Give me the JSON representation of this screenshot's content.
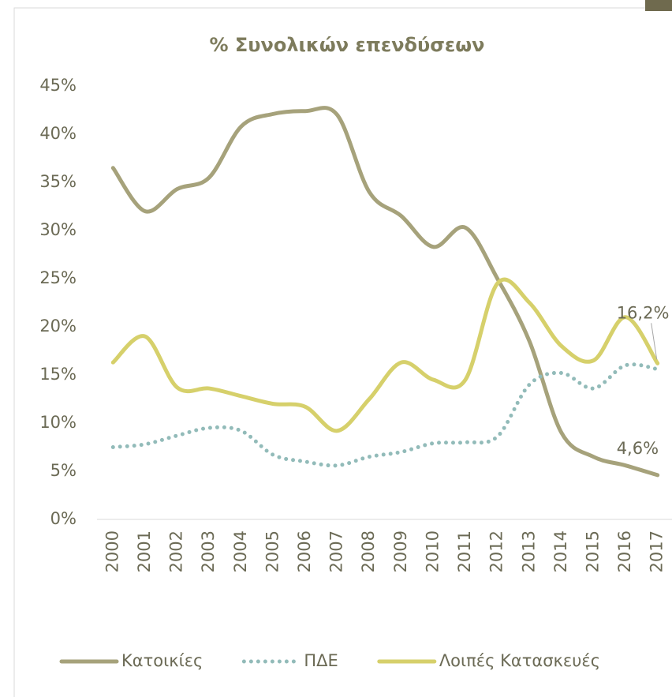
{
  "chart_data": {
    "type": "line",
    "title": "% Συνολικών επενδύσεων",
    "categories": [
      "2000",
      "2001",
      "2002",
      "2003",
      "2004",
      "2005",
      "2006",
      "2007",
      "2008",
      "2009",
      "2010",
      "2011",
      "2012",
      "2013",
      "2014",
      "2015",
      "2016",
      "2017"
    ],
    "series": [
      {
        "name": "Κατοικίες",
        "color": "#a6a27b",
        "style": "solid",
        "values": [
          36.5,
          32,
          34.3,
          35.5,
          40.8,
          42.1,
          42.4,
          42,
          34,
          31.5,
          28.3,
          30.3,
          25,
          18.5,
          9,
          6.5,
          5.6,
          4.6
        ],
        "value_labels": [
          null,
          null,
          null,
          null,
          null,
          null,
          null,
          null,
          null,
          null,
          null,
          null,
          null,
          null,
          null,
          null,
          null,
          "4,6%"
        ]
      },
      {
        "name": "ΠΔΕ",
        "color": "#92bbb9",
        "style": "dotted",
        "values": [
          7.5,
          7.8,
          8.7,
          9.5,
          9.2,
          6.7,
          6,
          5.6,
          6.5,
          7,
          7.9,
          8,
          8.6,
          14,
          15.2,
          13.6,
          16,
          15.6
        ]
      },
      {
        "name": "Λοιπές Κατασκευές",
        "color": "#d6d06b",
        "style": "solid",
        "values": [
          16.3,
          19,
          13.7,
          13.6,
          12.8,
          12,
          11.7,
          9.2,
          12.5,
          16.3,
          14.5,
          14.5,
          24.5,
          22.5,
          18,
          16.5,
          21,
          16.2
        ],
        "value_labels": [
          null,
          null,
          null,
          null,
          null,
          null,
          null,
          null,
          null,
          null,
          null,
          null,
          null,
          null,
          null,
          null,
          null,
          "16,2%"
        ]
      }
    ],
    "ylim": [
      0,
      45
    ],
    "yticks": [
      {
        "value": 0,
        "label": "0%"
      },
      {
        "value": 5,
        "label": "5%"
      },
      {
        "value": 10,
        "label": "10%"
      },
      {
        "value": 15,
        "label": "15%"
      },
      {
        "value": 20,
        "label": "20%"
      },
      {
        "value": 25,
        "label": "25%"
      },
      {
        "value": 30,
        "label": "30%"
      },
      {
        "value": 35,
        "label": "35%"
      },
      {
        "value": 40,
        "label": "40%"
      },
      {
        "value": 45,
        "label": "45%"
      }
    ],
    "grid": false,
    "legend": "bottom"
  }
}
